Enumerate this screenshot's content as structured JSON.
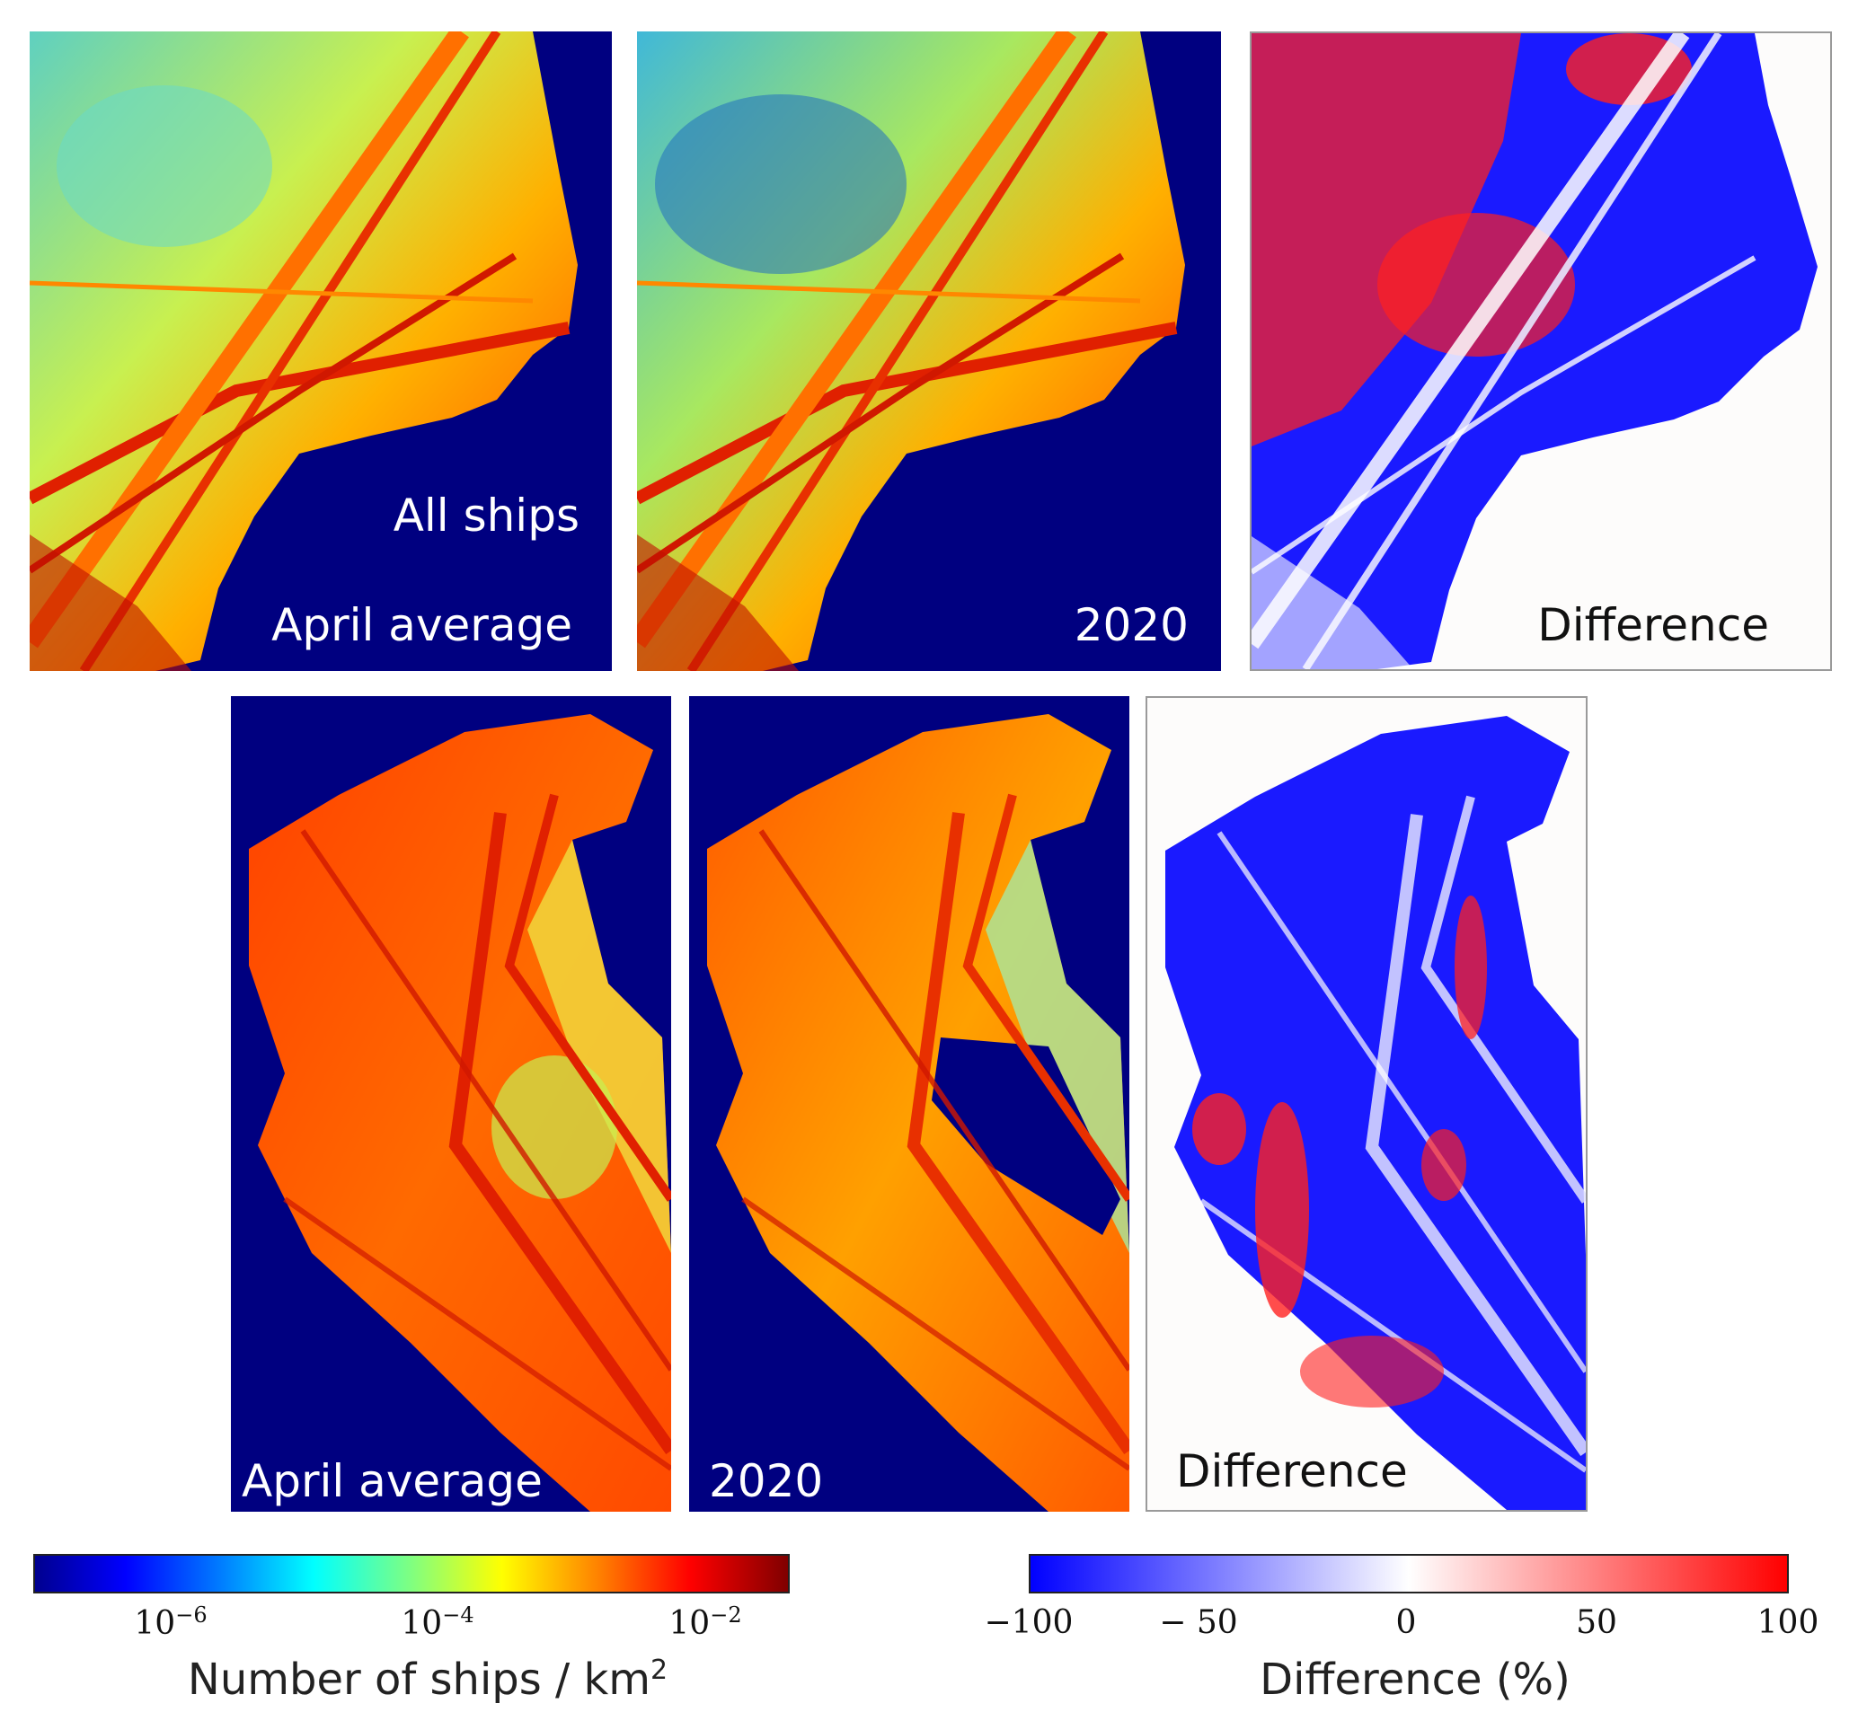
{
  "top_row": {
    "panel1": {
      "lines": [
        "All ships",
        "April average"
      ]
    },
    "panel2": {
      "label": "2020"
    },
    "panel3": {
      "label": "Difference"
    }
  },
  "bottom_row": {
    "panel1": {
      "label": "April average"
    },
    "panel2": {
      "label": "2020"
    },
    "panel3": {
      "label": "Difference"
    }
  },
  "density_colorbar": {
    "colormap": "jet",
    "scale": "log",
    "ticks": [
      {
        "base": "10",
        "exponent": "−6",
        "value": 1e-06
      },
      {
        "base": "10",
        "exponent": "−4",
        "value": 0.0001
      },
      {
        "base": "10",
        "exponent": "−2",
        "value": 0.01
      }
    ],
    "title_base": "Number of ships / km",
    "title_exponent": "2"
  },
  "difference_colorbar": {
    "colormap": "blue-white-red",
    "range": [
      -100,
      100
    ],
    "ticks": [
      "−100",
      "− 50",
      "0",
      "50",
      "100"
    ],
    "title": "Difference (%)"
  },
  "colors": {
    "ocean_background": "#000080",
    "difference_background": "#fdfcfb",
    "decrease": "#1010ff",
    "increase": "#ff1a1a"
  }
}
